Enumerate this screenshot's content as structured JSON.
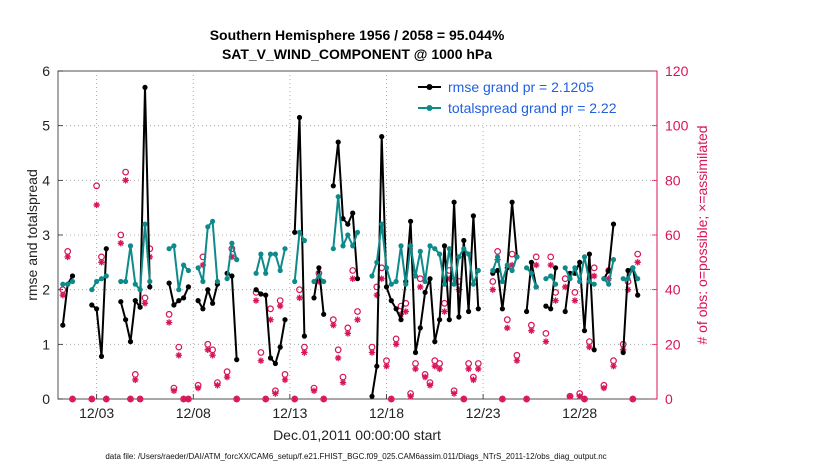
{
  "chart_data": {
    "type": "line",
    "title": "Southern Hemisphere 1956 / 2058 = 95.044%",
    "subtitle": "SAT_V_WIND_COMPONENT @ 1000 hPa",
    "xlabel": "Dec.01,2011 00:00:00 start",
    "ylabel": "rmse and totalspread",
    "ylabel_right": "# of obs: o=possible; ×=assimilated",
    "xlim": [
      1.0,
      32.0
    ],
    "ylim": [
      0,
      6
    ],
    "ylim_right": [
      0,
      120
    ],
    "x_ticks": [
      3,
      8,
      13,
      18,
      23,
      28
    ],
    "x_tick_labels": [
      "12/03",
      "12/08",
      "12/13",
      "12/18",
      "12/23",
      "12/28"
    ],
    "y_ticks": [
      "0",
      "1",
      "2",
      "3",
      "4",
      "5",
      "6"
    ],
    "y_ticks_right": [
      "0",
      "20",
      "40",
      "60",
      "80",
      "100",
      "120"
    ],
    "legend": [
      "rmse grand pr = 2.1205",
      "totalspread grand pr = 2.22"
    ],
    "legend_position": "top-right",
    "footer": "data file: /Users/raeder/DAI/ATM_forcXX/CAM6_setup/f.e21.FHIST_BGC.f09_025.CAM6assim.011/Diags_NTrS_2011-12/obs_diag_output.nc",
    "colors": {
      "rmse": "#000000",
      "spread": "#0f8a8a",
      "obs": "#d8145a",
      "legend_text": "#1f5fe0"
    },
    "series": [
      {
        "name": "rmse",
        "x": [
          1.25,
          1.5,
          1.75,
          2.75,
          3.0,
          3.25,
          3.5,
          4.25,
          4.5,
          4.75,
          5.0,
          5.25,
          5.5,
          5.75,
          6.75,
          7.0,
          7.25,
          7.5,
          7.75,
          8.25,
          8.5,
          8.75,
          9.0,
          9.25,
          9.75,
          10.0,
          10.25,
          11.25,
          11.5,
          11.75,
          12.0,
          12.25,
          12.5,
          12.75,
          13.25,
          13.5,
          13.75,
          14.25,
          14.5,
          14.75,
          15.25,
          15.5,
          15.75,
          16.0,
          16.25,
          16.5,
          17.25,
          17.5,
          17.75,
          18.0,
          18.25,
          18.5,
          18.75,
          19.0,
          19.25,
          19.5,
          19.75,
          20.0,
          20.25,
          20.5,
          20.75,
          21.0,
          21.25,
          21.5,
          21.75,
          22.0,
          22.25,
          22.5,
          22.75,
          23.5,
          23.75,
          24.0,
          24.25,
          24.5,
          24.75,
          25.25,
          25.5,
          25.75,
          26.25,
          26.5,
          26.75,
          27.25,
          27.5,
          27.75,
          28.0,
          28.25,
          28.5,
          28.75,
          29.25,
          29.5,
          29.75,
          30.25,
          30.5,
          30.75,
          31.0
        ],
        "y": [
          1.35,
          2.1,
          2.25,
          1.72,
          1.65,
          0.78,
          2.75,
          1.78,
          1.45,
          1.05,
          1.8,
          1.68,
          5.7,
          2.05,
          2.12,
          1.72,
          1.8,
          1.85,
          2.05,
          1.8,
          1.65,
          2.0,
          1.75,
          2.1,
          2.3,
          2.25,
          0.72,
          2.0,
          1.92,
          1.9,
          0.75,
          0.65,
          0.95,
          1.45,
          3.05,
          5.15,
          1.15,
          1.85,
          2.4,
          1.55,
          3.9,
          4.7,
          3.3,
          3.2,
          3.4,
          2.2,
          0.05,
          0.6,
          4.8,
          2.05,
          1.8,
          1.65,
          1.45,
          2.15,
          3.25,
          0.85,
          1.3,
          1.95,
          2.2,
          1.05,
          1.45,
          2.8,
          1.45,
          3.6,
          1.5,
          2.9,
          1.6,
          3.35,
          1.65,
          2.3,
          2.35,
          1.65,
          2.4,
          3.6,
          2.6,
          1.6,
          2.5,
          2.05,
          1.7,
          1.65,
          2.4,
          1.6,
          2.3,
          2.3,
          2.5,
          1.25,
          2.65,
          0.9,
          2.2,
          2.35,
          3.2,
          0.85,
          2.35,
          2.4,
          1.9
        ],
        "style": "line-dots"
      },
      {
        "name": "totalspread",
        "x": [
          1.25,
          1.5,
          1.75,
          2.75,
          3.0,
          3.25,
          3.5,
          4.25,
          4.5,
          4.75,
          5.0,
          5.25,
          5.5,
          5.75,
          6.75,
          7.0,
          7.25,
          7.5,
          7.75,
          8.25,
          8.5,
          8.75,
          9.0,
          9.25,
          9.75,
          10.0,
          10.25,
          11.25,
          11.5,
          11.75,
          12.0,
          12.25,
          12.5,
          12.75,
          13.25,
          13.5,
          13.75,
          14.25,
          14.5,
          14.75,
          15.25,
          15.5,
          15.75,
          16.0,
          16.25,
          16.5,
          17.25,
          17.5,
          17.75,
          18.0,
          18.25,
          18.5,
          18.75,
          19.0,
          19.25,
          19.5,
          19.75,
          20.0,
          20.25,
          20.5,
          20.75,
          21.0,
          21.25,
          21.5,
          21.75,
          22.0,
          22.25,
          22.5,
          22.75,
          23.5,
          23.75,
          24.0,
          24.25,
          24.5,
          24.75,
          25.25,
          25.5,
          25.75,
          26.25,
          26.5,
          26.75,
          27.25,
          27.5,
          27.75,
          28.0,
          28.25,
          28.5,
          28.75,
          29.25,
          29.5,
          29.75,
          30.25,
          30.5,
          30.75,
          31.0
        ],
        "y": [
          2.1,
          2.1,
          2.15,
          2.0,
          2.15,
          2.2,
          2.25,
          2.15,
          2.15,
          2.8,
          2.1,
          2.0,
          3.2,
          2.15,
          2.75,
          2.8,
          2.0,
          2.45,
          2.35,
          2.4,
          2.15,
          3.15,
          3.25,
          2.15,
          2.2,
          2.85,
          2.55,
          2.3,
          2.65,
          2.3,
          2.65,
          2.65,
          2.35,
          2.75,
          2.15,
          3.05,
          2.9,
          2.15,
          2.25,
          2.15,
          2.75,
          3.7,
          2.8,
          3.0,
          2.8,
          3.05,
          2.25,
          2.5,
          3.2,
          2.4,
          2.1,
          2.15,
          2.8,
          2.1,
          2.8,
          2.25,
          2.7,
          2.15,
          2.8,
          2.75,
          2.65,
          2.1,
          2.75,
          2.1,
          2.6,
          2.75,
          2.65,
          2.1,
          2.35,
          2.35,
          2.6,
          2.15,
          2.45,
          2.35,
          2.6,
          2.4,
          2.3,
          2.05,
          2.2,
          2.25,
          2.1,
          2.4,
          2.2,
          2.4,
          2.15,
          2.6,
          2.15,
          2.1,
          2.2,
          2.1,
          2.55,
          2.2,
          2.2,
          2.4,
          2.2
        ],
        "style": "line-dots"
      },
      {
        "name": "obs possible",
        "axis": "right",
        "x": [
          1.25,
          1.5,
          1.75,
          2.75,
          3.0,
          3.25,
          3.5,
          4.25,
          4.5,
          4.75,
          5.0,
          5.25,
          5.5,
          5.75,
          6.75,
          7.0,
          7.25,
          7.5,
          7.75,
          8.25,
          8.5,
          8.75,
          9.0,
          9.25,
          9.75,
          10.0,
          10.25,
          11.25,
          11.5,
          11.75,
          12.0,
          12.25,
          12.5,
          12.75,
          13.25,
          13.5,
          13.75,
          14.25,
          14.5,
          14.75,
          15.25,
          15.5,
          15.75,
          16.0,
          16.25,
          16.5,
          17.25,
          17.5,
          17.75,
          18.0,
          18.25,
          18.5,
          18.75,
          19.0,
          19.25,
          19.5,
          19.75,
          20.0,
          20.25,
          20.5,
          20.75,
          21.0,
          21.25,
          21.5,
          21.75,
          22.0,
          22.25,
          22.5,
          22.75,
          23.5,
          23.75,
          24.0,
          24.25,
          24.5,
          24.75,
          25.25,
          25.5,
          25.75,
          26.25,
          26.5,
          26.75,
          27.25,
          27.5,
          27.75,
          28.0,
          28.25,
          28.5,
          28.75,
          29.25,
          29.5,
          29.75,
          30.25,
          30.5,
          30.75,
          31.0
        ],
        "y": [
          40,
          54,
          0,
          0,
          78,
          52,
          0,
          60,
          83,
          0,
          9,
          0,
          37,
          55,
          31,
          4,
          19,
          0,
          0,
          5,
          52,
          20,
          18,
          6,
          10,
          55,
          0,
          39,
          17,
          0,
          33,
          3,
          36,
          9,
          0,
          40,
          19,
          4,
          46,
          0,
          29,
          18,
          8,
          26,
          47,
          32,
          19,
          41,
          48,
          14,
          0,
          22,
          34,
          35,
          2,
          13,
          44,
          9,
          6,
          14,
          13,
          35,
          47,
          3,
          43,
          0,
          13,
          8,
          13,
          43,
          54,
          0,
          29,
          53,
          16,
          0,
          27,
          52,
          24,
          52,
          39,
          44,
          1,
          39,
          2,
          0,
          21,
          48,
          5,
          47,
          14,
          20,
          43,
          0,
          53
        ],
        "style": "o"
      },
      {
        "name": "obs assimilated",
        "axis": "right",
        "x": [
          1.25,
          1.5,
          1.75,
          2.75,
          3.0,
          3.25,
          3.5,
          4.25,
          4.5,
          4.75,
          5.0,
          5.25,
          5.5,
          5.75,
          6.75,
          7.0,
          7.25,
          7.5,
          7.75,
          8.25,
          8.5,
          8.75,
          9.0,
          9.25,
          9.75,
          10.0,
          10.25,
          11.25,
          11.5,
          11.75,
          12.0,
          12.25,
          12.5,
          12.75,
          13.25,
          13.5,
          13.75,
          14.25,
          14.5,
          14.75,
          15.25,
          15.5,
          15.75,
          16.0,
          16.25,
          16.5,
          17.25,
          17.5,
          17.75,
          18.0,
          18.25,
          18.5,
          18.75,
          19.0,
          19.25,
          19.5,
          19.75,
          20.0,
          20.25,
          20.5,
          20.75,
          21.0,
          21.25,
          21.5,
          21.75,
          22.0,
          22.25,
          22.5,
          22.75,
          23.5,
          23.75,
          24.0,
          24.25,
          24.5,
          24.75,
          25.25,
          25.5,
          25.75,
          26.25,
          26.5,
          26.75,
          27.25,
          27.5,
          27.75,
          28.0,
          28.25,
          28.5,
          28.75,
          29.25,
          29.5,
          29.75,
          30.25,
          30.5,
          30.75,
          31.0
        ],
        "y": [
          38,
          52,
          0,
          0,
          71,
          50,
          0,
          57,
          80,
          0,
          7,
          0,
          35,
          52,
          28,
          3,
          16,
          0,
          0,
          4,
          49,
          18,
          16,
          5,
          8,
          52,
          0,
          36,
          14,
          0,
          29,
          2,
          34,
          7,
          0,
          37,
          17,
          3,
          43,
          0,
          27,
          15,
          6,
          24,
          44,
          29,
          17,
          38,
          44,
          12,
          0,
          20,
          31,
          32,
          1,
          11,
          41,
          8,
          5,
          12,
          11,
          32,
          44,
          2,
          40,
          0,
          11,
          7,
          11,
          40,
          51,
          0,
          26,
          49,
          14,
          0,
          25,
          49,
          21,
          49,
          36,
          41,
          1,
          36,
          1,
          0,
          19,
          45,
          4,
          44,
          12,
          18,
          40,
          0,
          50
        ],
        "style": "x"
      }
    ]
  }
}
